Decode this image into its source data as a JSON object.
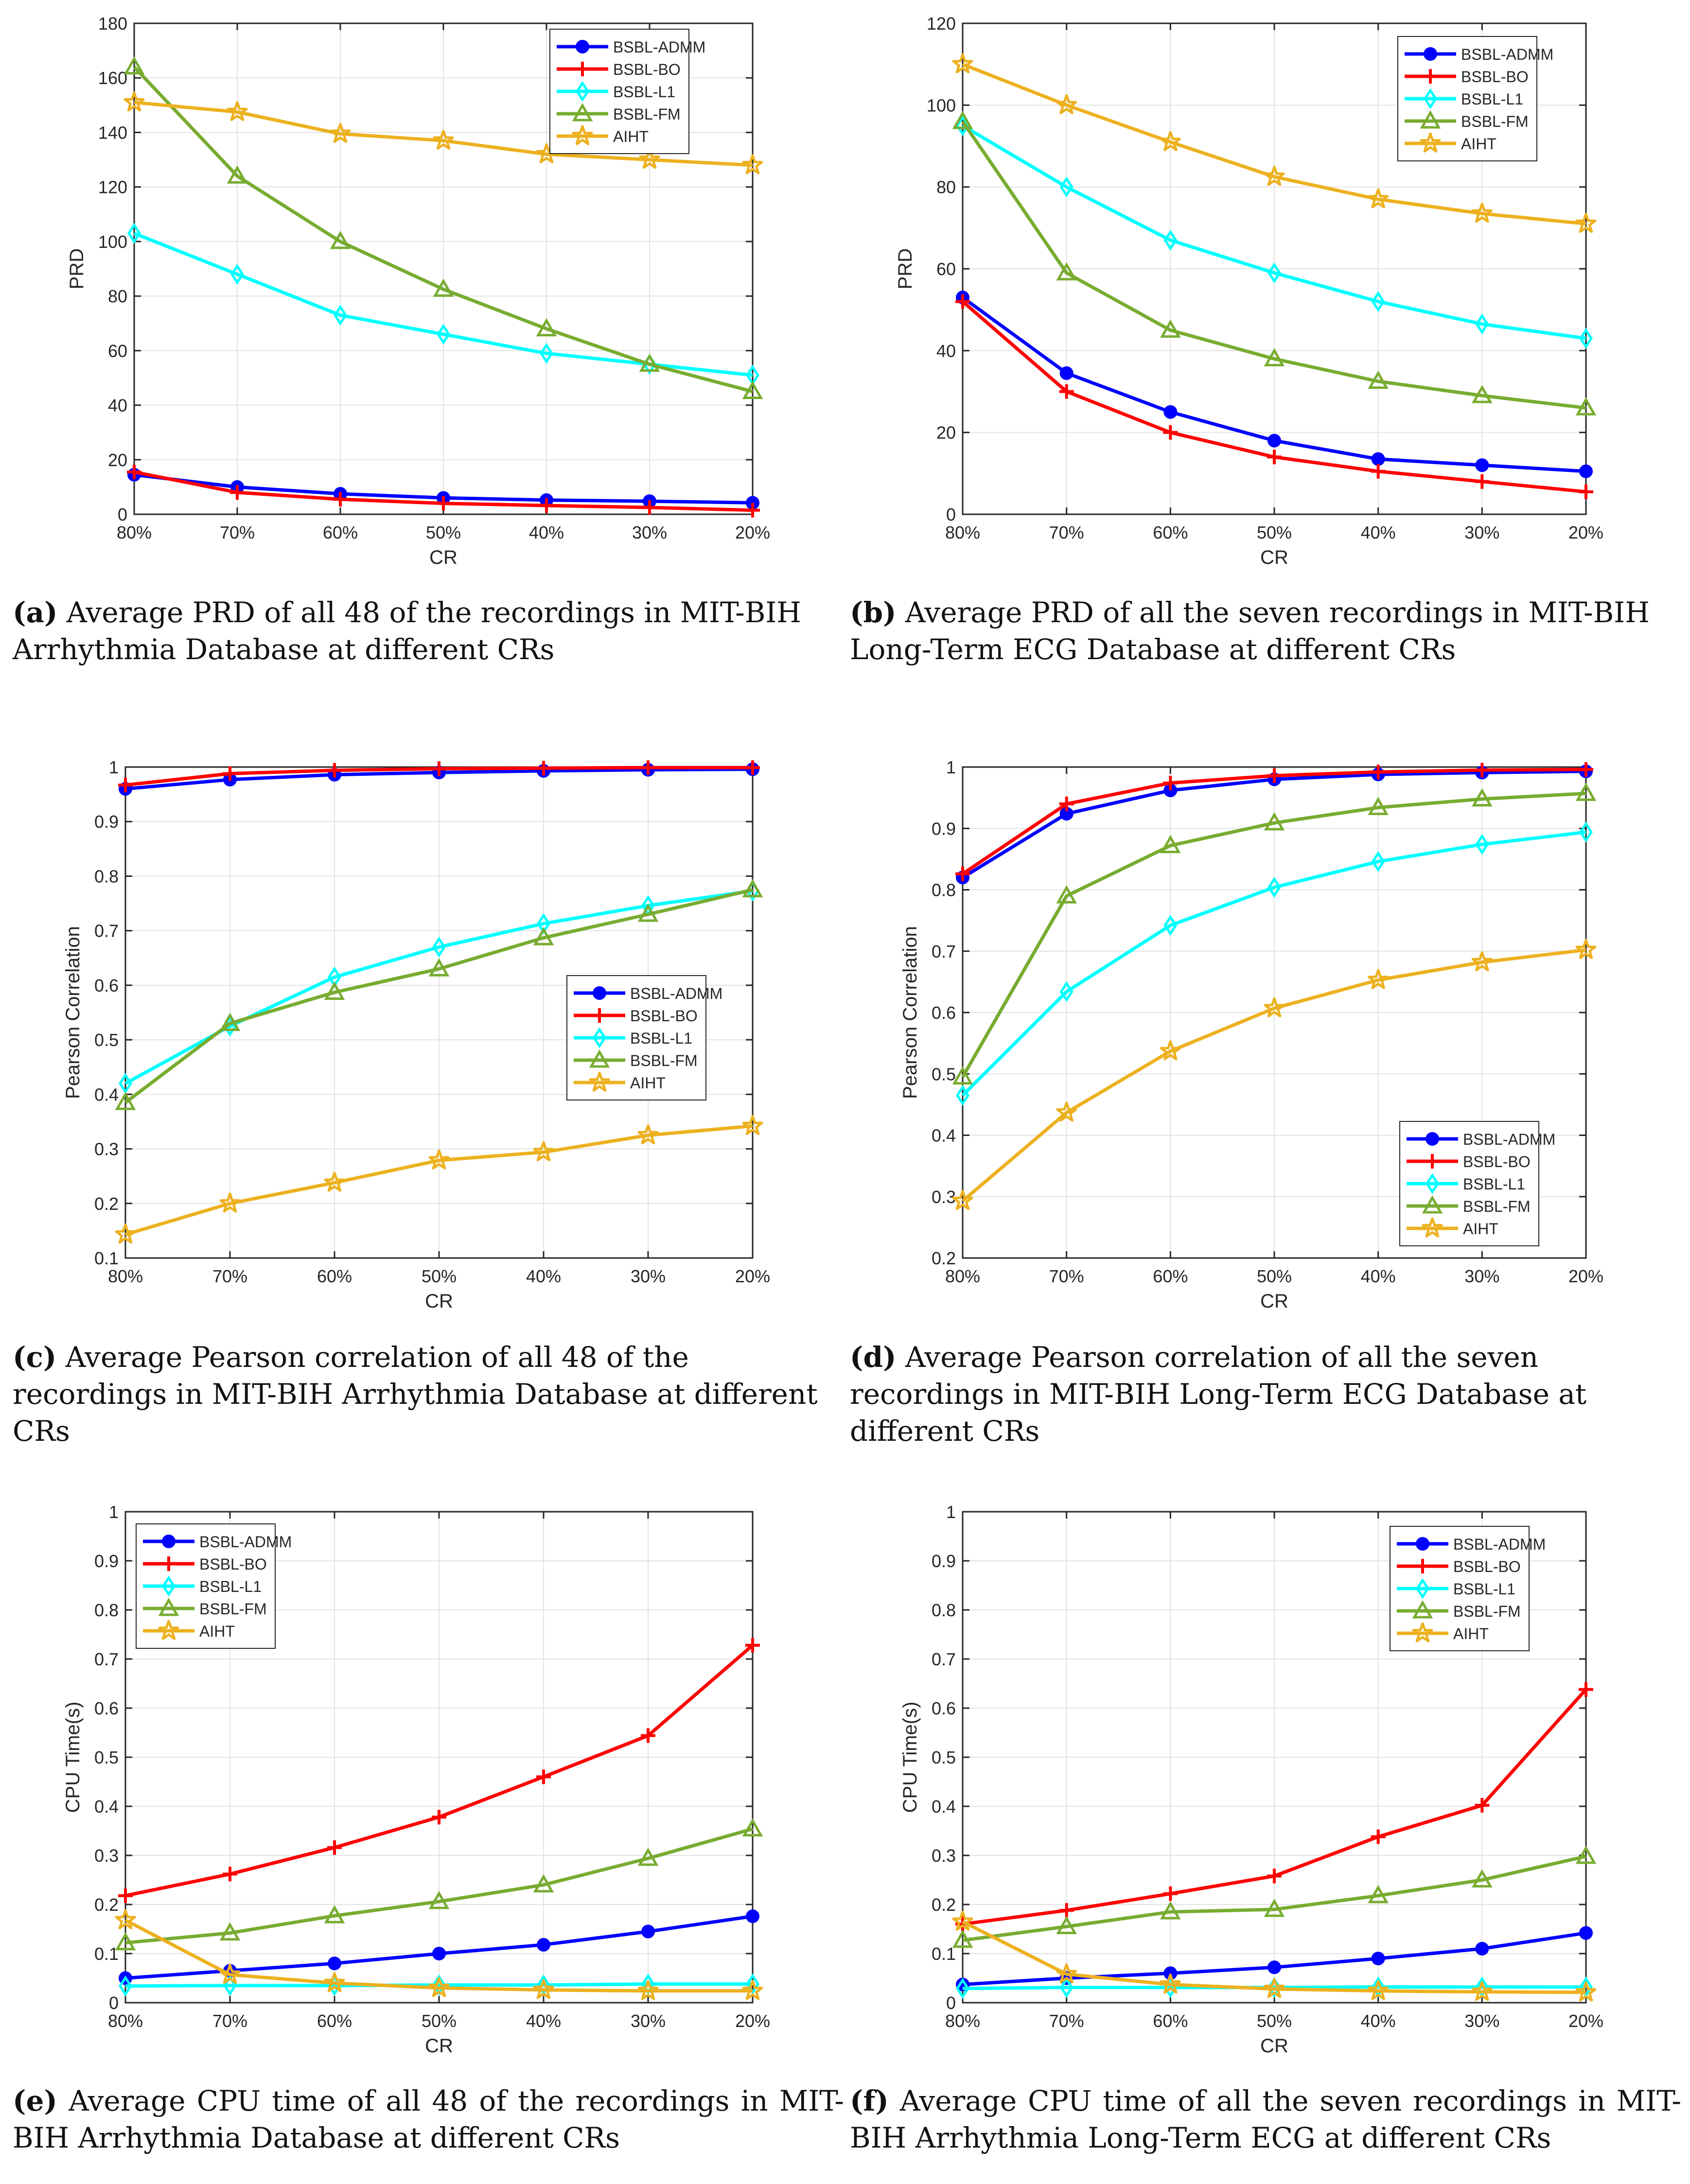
{
  "series_names": [
    "BSBL-ADMM",
    "BSBL-BO",
    "BSBL-L1",
    "BSBL-FM",
    "AIHT"
  ],
  "colors": {
    "BSBL-ADMM": "#0000ff",
    "BSBL-BO": "#ff0000",
    "BSBL-L1": "#00ffff",
    "BSBL-FM": "#77ac30",
    "AIHT": "#edb120"
  },
  "markers": {
    "BSBL-ADMM": "circle",
    "BSBL-BO": "plus",
    "BSBL-L1": "diamond",
    "BSBL-FM": "triangle",
    "AIHT": "star"
  },
  "captions": [
    {
      "label": "(a)",
      "text": "Average PRD of all 48 of the recordings in MIT-BIH Arrhythmia Database at different CRs"
    },
    {
      "label": "(b)",
      "text": "Average PRD of all the seven recordings in MIT-BIH Long-Term ECG Database at different CRs"
    },
    {
      "label": "(c)",
      "text": "Average Pearson correlation of all 48 of the recordings in MIT-BIH Arrhythmia Database at different CRs"
    },
    {
      "label": "(d)",
      "text": "Average Pearson correlation of all the seven recordings in MIT-BIH Long-Term ECG Database at different CRs"
    },
    {
      "label": "(e)",
      "text": "Average CPU time of all 48 of the recordings in MIT-BIH Arrhythmia Database at different CRs"
    },
    {
      "label": "(f)",
      "text": "Average CPU time of all the seven recordings in MIT-BIH Arrhythmia Long-Term ECG at different CRs"
    }
  ],
  "chart_data": [
    {
      "type": "line",
      "panel": "a",
      "xlabel": "CR",
      "ylabel": "PRD",
      "categories": [
        "80%",
        "70%",
        "60%",
        "50%",
        "40%",
        "30%",
        "20%"
      ],
      "ylim": [
        0,
        180
      ],
      "yticks": [
        "0",
        "20",
        "40",
        "60",
        "80",
        "100",
        "120",
        "140",
        "160",
        "180"
      ],
      "grid": true,
      "legend_position": "top-right",
      "series": [
        {
          "name": "BSBL-ADMM",
          "values": [
            14.5,
            10,
            7.5,
            6,
            5.2,
            4.8,
            4.2
          ]
        },
        {
          "name": "BSBL-BO",
          "values": [
            15.5,
            8,
            5.5,
            4,
            3.2,
            2.5,
            1.5
          ]
        },
        {
          "name": "BSBL-L1",
          "values": [
            103,
            88,
            73,
            66,
            59,
            55,
            51
          ]
        },
        {
          "name": "BSBL-FM",
          "values": [
            164,
            124,
            100,
            82.5,
            68,
            55,
            45
          ]
        },
        {
          "name": "AIHT",
          "values": [
            151,
            147.5,
            139.5,
            137,
            132,
            130,
            128
          ]
        }
      ]
    },
    {
      "type": "line",
      "panel": "b",
      "xlabel": "CR",
      "ylabel": "PRD",
      "categories": [
        "80%",
        "70%",
        "60%",
        "50%",
        "40%",
        "30%",
        "20%"
      ],
      "ylim": [
        0,
        120
      ],
      "yticks": [
        "0",
        "20",
        "40",
        "60",
        "80",
        "100",
        "120"
      ],
      "grid": true,
      "legend_position": "top-right",
      "series": [
        {
          "name": "BSBL-ADMM",
          "values": [
            53,
            34.5,
            25,
            18,
            13.5,
            12,
            10.5
          ]
        },
        {
          "name": "BSBL-BO",
          "values": [
            52,
            30,
            20,
            14,
            10.5,
            8,
            5.5
          ]
        },
        {
          "name": "BSBL-L1",
          "values": [
            95,
            80,
            67,
            59,
            52,
            46.5,
            43
          ]
        },
        {
          "name": "BSBL-FM",
          "values": [
            96,
            59,
            45,
            38,
            32.5,
            29,
            26
          ]
        },
        {
          "name": "AIHT",
          "values": [
            110,
            100,
            91,
            82.5,
            77,
            73.5,
            71
          ]
        }
      ]
    },
    {
      "type": "line",
      "panel": "c",
      "xlabel": "CR",
      "ylabel": "Pearson Correlation",
      "categories": [
        "80%",
        "70%",
        "60%",
        "50%",
        "40%",
        "30%",
        "20%"
      ],
      "ylim": [
        0.1,
        1
      ],
      "yticks": [
        "0.1",
        "0.2",
        "0.3",
        "0.4",
        "0.5",
        "0.6",
        "0.7",
        "0.8",
        "0.9",
        "1"
      ],
      "grid": true,
      "legend_position": "center-right",
      "series": [
        {
          "name": "BSBL-ADMM",
          "values": [
            0.96,
            0.977,
            0.986,
            0.99,
            0.993,
            0.995,
            0.996
          ]
        },
        {
          "name": "BSBL-BO",
          "values": [
            0.967,
            0.988,
            0.994,
            0.997,
            0.998,
            0.999,
            0.999
          ]
        },
        {
          "name": "BSBL-L1",
          "values": [
            0.42,
            0.525,
            0.615,
            0.67,
            0.713,
            0.746,
            0.773
          ]
        },
        {
          "name": "BSBL-FM",
          "values": [
            0.385,
            0.53,
            0.587,
            0.63,
            0.687,
            0.73,
            0.775
          ]
        },
        {
          "name": "AIHT",
          "values": [
            0.143,
            0.2,
            0.238,
            0.279,
            0.294,
            0.325,
            0.342
          ]
        }
      ]
    },
    {
      "type": "line",
      "panel": "d",
      "xlabel": "CR",
      "ylabel": "Pearson Correlation",
      "categories": [
        "80%",
        "70%",
        "60%",
        "50%",
        "40%",
        "30%",
        "20%"
      ],
      "ylim": [
        0.2,
        1
      ],
      "yticks": [
        "0.2",
        "0.3",
        "0.4",
        "0.5",
        "0.6",
        "0.7",
        "0.8",
        "0.9",
        "1"
      ],
      "grid": true,
      "legend_position": "bottom-right",
      "series": [
        {
          "name": "BSBL-ADMM",
          "values": [
            0.82,
            0.924,
            0.962,
            0.98,
            0.988,
            0.991,
            0.993
          ]
        },
        {
          "name": "BSBL-BO",
          "values": [
            0.826,
            0.94,
            0.974,
            0.986,
            0.992,
            0.995,
            0.996
          ]
        },
        {
          "name": "BSBL-L1",
          "values": [
            0.465,
            0.634,
            0.742,
            0.804,
            0.846,
            0.874,
            0.894
          ]
        },
        {
          "name": "BSBL-FM",
          "values": [
            0.495,
            0.79,
            0.872,
            0.909,
            0.934,
            0.948,
            0.957
          ]
        },
        {
          "name": "AIHT",
          "values": [
            0.293,
            0.437,
            0.537,
            0.607,
            0.653,
            0.682,
            0.702
          ]
        }
      ]
    },
    {
      "type": "line",
      "panel": "e",
      "xlabel": "CR",
      "ylabel": "CPU Time(s)",
      "categories": [
        "80%",
        "70%",
        "60%",
        "50%",
        "40%",
        "30%",
        "20%"
      ],
      "ylim": [
        0,
        1
      ],
      "yticks": [
        "0",
        "0.1",
        "0.2",
        "0.3",
        "0.4",
        "0.5",
        "0.6",
        "0.7",
        "0.8",
        "0.9",
        "1"
      ],
      "grid": true,
      "legend_position": "top-left",
      "series": [
        {
          "name": "BSBL-ADMM",
          "values": [
            0.05,
            0.065,
            0.08,
            0.1,
            0.118,
            0.145,
            0.176
          ]
        },
        {
          "name": "BSBL-BO",
          "values": [
            0.218,
            0.262,
            0.316,
            0.378,
            0.46,
            0.544,
            0.728
          ]
        },
        {
          "name": "BSBL-L1",
          "values": [
            0.034,
            0.035,
            0.035,
            0.036,
            0.036,
            0.038,
            0.038
          ]
        },
        {
          "name": "BSBL-FM",
          "values": [
            0.122,
            0.142,
            0.177,
            0.206,
            0.24,
            0.294,
            0.354
          ]
        },
        {
          "name": "AIHT",
          "values": [
            0.168,
            0.057,
            0.04,
            0.03,
            0.026,
            0.024,
            0.024
          ]
        }
      ]
    },
    {
      "type": "line",
      "panel": "f",
      "xlabel": "CR",
      "ylabel": "CPU Time(s)",
      "categories": [
        "80%",
        "70%",
        "60%",
        "50%",
        "40%",
        "30%",
        "20%"
      ],
      "ylim": [
        0,
        1
      ],
      "yticks": [
        "0",
        "0.1",
        "0.2",
        "0.3",
        "0.4",
        "0.5",
        "0.6",
        "0.7",
        "0.8",
        "0.9",
        "1"
      ],
      "grid": true,
      "legend_position": "top-right",
      "series": [
        {
          "name": "BSBL-ADMM",
          "values": [
            0.037,
            0.05,
            0.06,
            0.072,
            0.09,
            0.11,
            0.142
          ]
        },
        {
          "name": "BSBL-BO",
          "values": [
            0.16,
            0.188,
            0.222,
            0.258,
            0.338,
            0.402,
            0.638
          ]
        },
        {
          "name": "BSBL-L1",
          "values": [
            0.029,
            0.031,
            0.031,
            0.031,
            0.032,
            0.032,
            0.032
          ]
        },
        {
          "name": "BSBL-FM",
          "values": [
            0.127,
            0.155,
            0.185,
            0.19,
            0.218,
            0.25,
            0.298
          ]
        },
        {
          "name": "AIHT",
          "values": [
            0.165,
            0.058,
            0.037,
            0.028,
            0.024,
            0.022,
            0.021
          ]
        }
      ]
    }
  ]
}
